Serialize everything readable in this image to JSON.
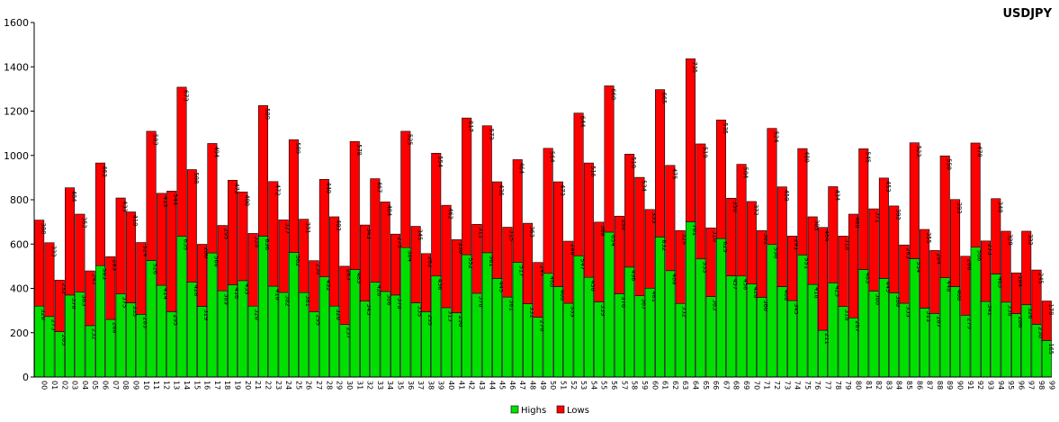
{
  "chart_data": {
    "type": "bar",
    "stacked": true,
    "title": "USDJPY",
    "xlabel": "",
    "ylabel": "",
    "ylim": [
      0,
      1600
    ],
    "yticks": [
      0,
      200,
      400,
      600,
      800,
      1000,
      1200,
      1400,
      1600
    ],
    "grid": false,
    "legend_position": "bottom",
    "categories": [
      "00",
      "01",
      "02",
      "03",
      "04",
      "05",
      "06",
      "07",
      "08",
      "09",
      "10",
      "11",
      "12",
      "13",
      "14",
      "15",
      "16",
      "17",
      "18",
      "19",
      "20",
      "21",
      "22",
      "23",
      "24",
      "25",
      "26",
      "27",
      "28",
      "29",
      "30",
      "31",
      "32",
      "33",
      "34",
      "35",
      "36",
      "37",
      "38",
      "39",
      "40",
      "41",
      "42",
      "43",
      "44",
      "45",
      "46",
      "47",
      "48",
      "49",
      "50",
      "51",
      "52",
      "53",
      "54",
      "55",
      "56",
      "57",
      "58",
      "59",
      "60",
      "61",
      "62",
      "63",
      "64",
      "65",
      "66",
      "67",
      "68",
      "69",
      "70",
      "71",
      "72",
      "73",
      "74",
      "75",
      "76",
      "77",
      "78",
      "79",
      "80",
      "81",
      "82",
      "83",
      "84",
      "85",
      "86",
      "87",
      "88",
      "89",
      "90",
      "91",
      "92",
      "93",
      "94",
      "95",
      "96",
      "97",
      "98",
      "99"
    ],
    "series": [
      {
        "name": "Highs",
        "color": "#00e000",
        "values": [
          320,
          273,
          205,
          370,
          383,
          232,
          503,
          260,
          375,
          335,
          283,
          526,
          414,
          295,
          635,
          428,
          319,
          560,
          389,
          416,
          435,
          320,
          636,
          410,
          382,
          562,
          381,
          295,
          452,
          320,
          237,
          485,
          343,
          428,
          386,
          370,
          584,
          335,
          295,
          456,
          313,
          290,
          552,
          378,
          561,
          445,
          361,
          517,
          331,
          270,
          468,
          408,
          333,
          547,
          450,
          339,
          654,
          376,
          496,
          367,
          401,
          632,
          480,
          332,
          701,
          533,
          363,
          625,
          457,
          456,
          420,
          360,
          598,
          408,
          345,
          551,
          418,
          211,
          425,
          318,
          267,
          485,
          388,
          445,
          380,
          333,
          534,
          311,
          287,
          448,
          408,
          279,
          586,
          341,
          465,
          338,
          286,
          326,
          238,
          165
        ]
      },
      {
        "name": "Lows",
        "color": "#ff0000",
        "values": [
          388,
          333,
          232,
          484,
          352,
          247,
          463,
          283,
          433,
          410,
          324,
          583,
          415,
          544,
          673,
          508,
          280,
          494,
          295,
          472,
          400,
          328,
          589,
          472,
          327,
          509,
          331,
          230,
          440,
          403,
          263,
          578,
          343,
          467,
          404,
          275,
          525,
          345,
          262,
          554,
          462,
          330,
          617,
          311,
          573,
          436,
          315,
          464,
          363,
          247,
          564,
          473,
          280,
          644,
          516,
          360,
          660,
          350,
          510,
          534,
          355,
          665,
          475,
          329,
          735,
          519,
          310,
          535,
          350,
          504,
          372,
          301,
          524,
          450,
          291,
          480,
          305,
          464,
          434,
          318,
          468,
          545,
          371,
          453,
          392,
          263,
          523,
          355,
          284,
          550,
          393,
          266,
          470,
          273,
          340,
          320,
          184,
          332,
          245,
          178
        ]
      }
    ]
  }
}
